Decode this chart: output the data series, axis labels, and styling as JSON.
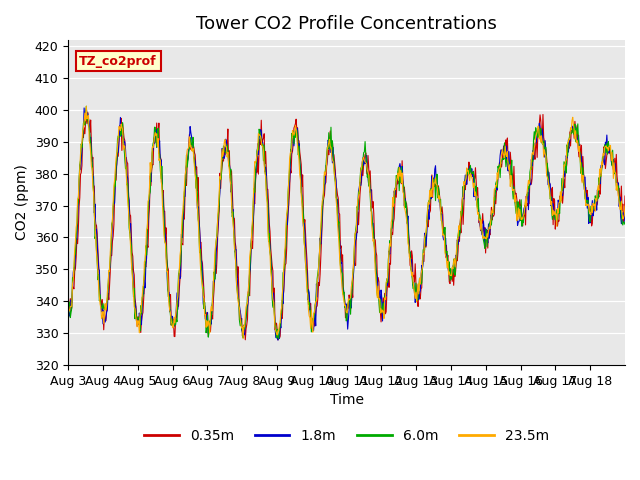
{
  "title": "Tower CO2 Profile Concentrations",
  "xlabel": "Time",
  "ylabel": "CO2 (ppm)",
  "ylim": [
    320,
    422
  ],
  "yticks": [
    320,
    330,
    340,
    350,
    360,
    370,
    380,
    390,
    400,
    410,
    420
  ],
  "xtick_labels": [
    "Aug 3",
    "Aug 4",
    "Aug 5",
    "Aug 6",
    "Aug 7",
    "Aug 8",
    "Aug 9",
    "Aug 10",
    "Aug 11",
    "Aug 12",
    "Aug 13",
    "Aug 14",
    "Aug 15",
    "Aug 16",
    "Aug 17",
    "Aug 18"
  ],
  "series": [
    {
      "label": "0.35m",
      "color": "#cc0000"
    },
    {
      "label": "1.8m",
      "color": "#0000cc"
    },
    {
      "label": "6.0m",
      "color": "#00aa00"
    },
    {
      "label": "23.5m",
      "color": "#ffaa00"
    }
  ],
  "legend_label": "TZ_co2prof",
  "legend_text_color": "#cc0000",
  "legend_bg": "#ffffcc",
  "legend_edge": "#cc0000",
  "plot_bg": "#e8e8e8",
  "title_fontsize": 13,
  "axis_fontsize": 10,
  "tick_fontsize": 9
}
